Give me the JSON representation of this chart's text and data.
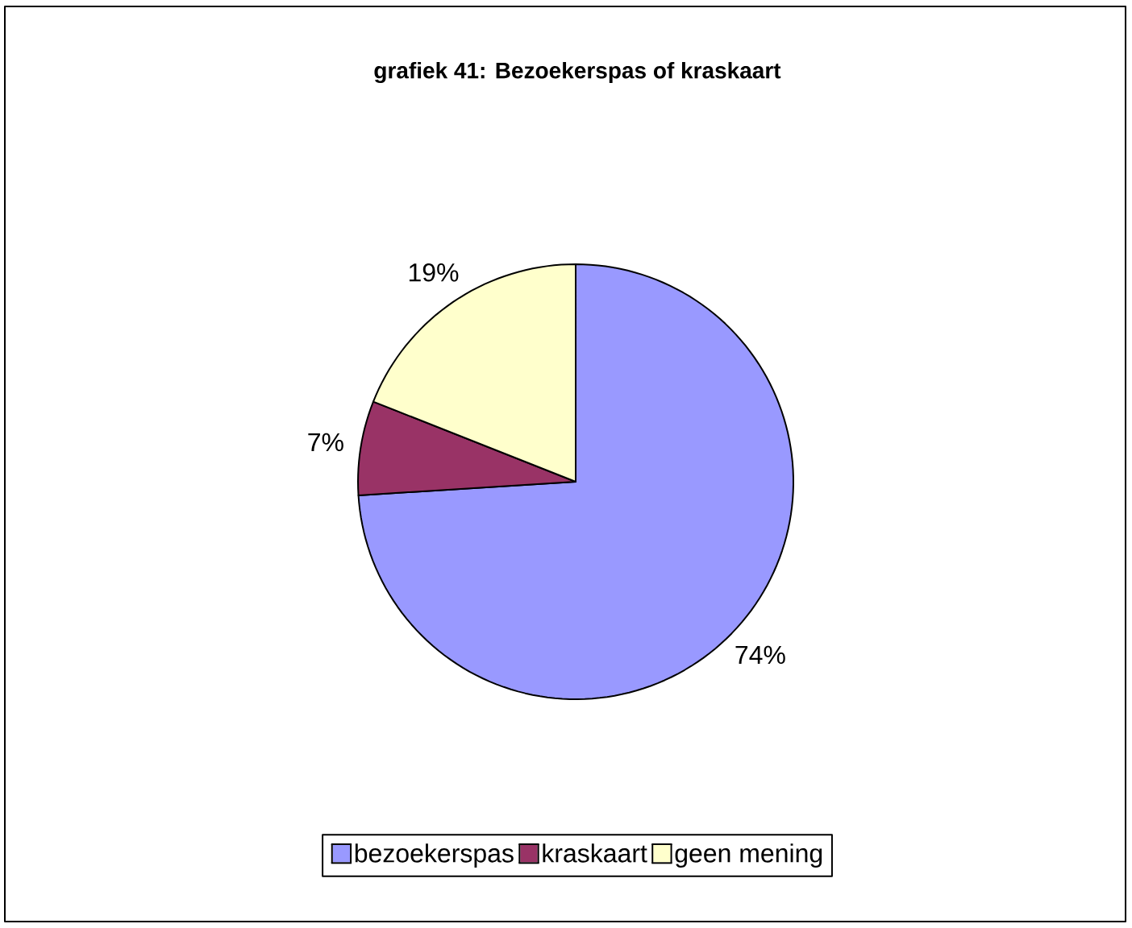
{
  "chart_data": {
    "type": "pie",
    "title": "grafiek 41: Bezoekerspas of kraskaart",
    "categories": [
      "bezoekerspas",
      "kraskaart",
      "geen mening"
    ],
    "values": [
      74,
      7,
      19
    ],
    "value_labels": [
      "74%",
      "7%",
      "19%"
    ],
    "colors": [
      "#9999ff",
      "#993366",
      "#ffffcc"
    ],
    "legend": "bottom"
  }
}
